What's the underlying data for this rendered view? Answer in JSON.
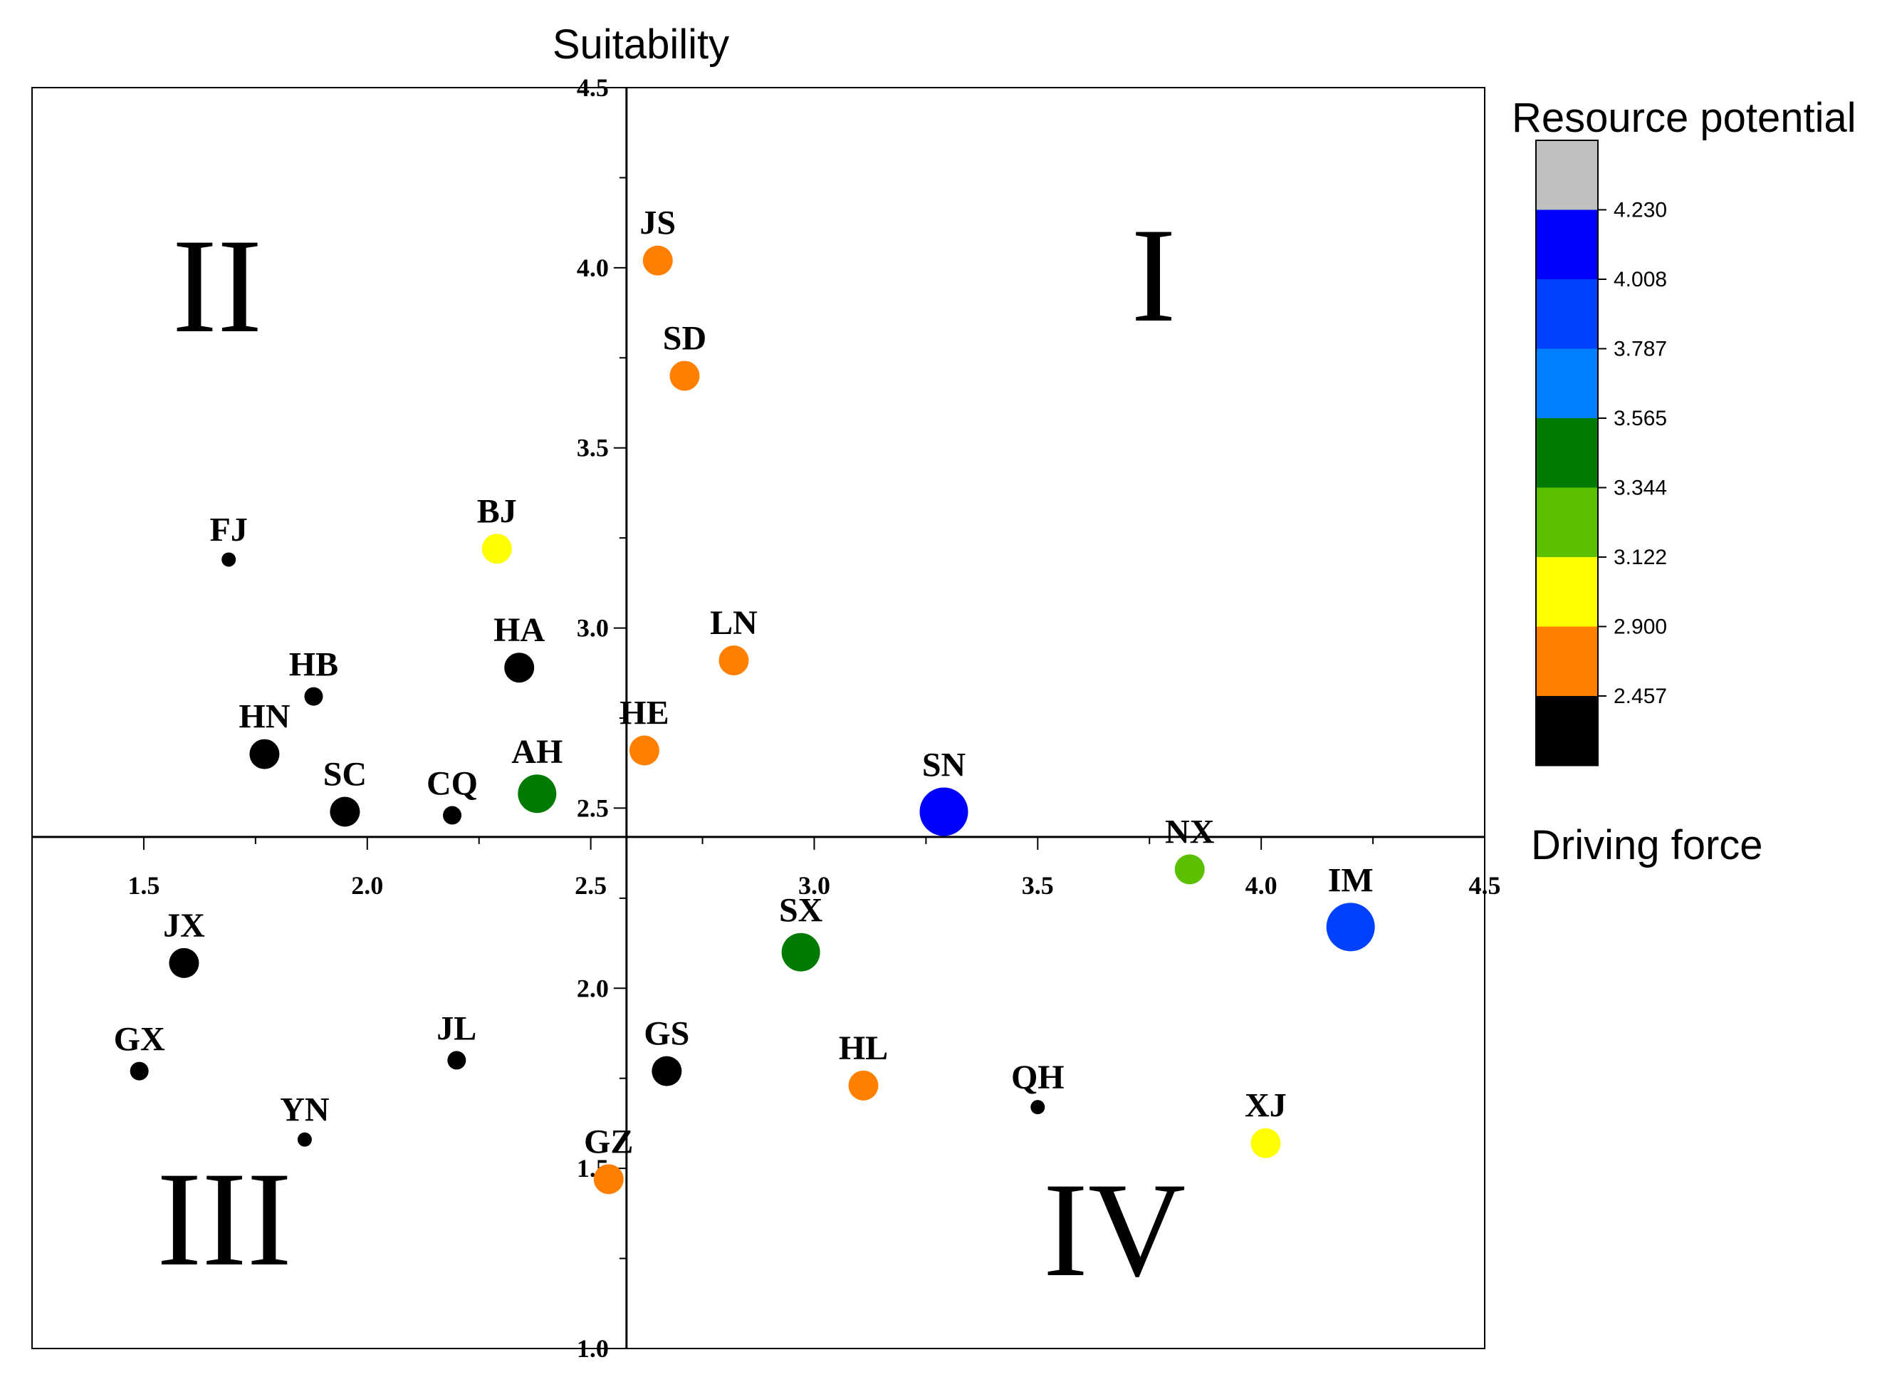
{
  "chart_data": {
    "type": "scatter",
    "title": "",
    "xlabel": "Driving force",
    "ylabel": "Suitability",
    "xlim": [
      1.25,
      4.5
    ],
    "ylim": [
      1.0,
      4.5
    ],
    "x_ticks": [
      "1.5",
      "2.0",
      "2.5",
      "3.0",
      "3.5",
      "4.0",
      "4.5"
    ],
    "y_ticks": [
      "1.0",
      "1.5",
      "2.0",
      "2.5",
      "3.0",
      "3.5",
      "4.0",
      "4.5"
    ],
    "quadrants": [
      "I",
      "II",
      "III",
      "IV"
    ],
    "legend": {
      "title": "Resource potential",
      "boundaries": [
        "2.457",
        "2.900",
        "3.122",
        "3.344",
        "3.565",
        "3.787",
        "4.008",
        "4.230"
      ],
      "colors": [
        "#000000",
        "#ff8000",
        "#ffff00",
        "#5ac000",
        "#007a00",
        "#0080ff",
        "#0040ff",
        "#0000ff",
        "#c0c0c0"
      ]
    },
    "points": [
      {
        "label": "JS",
        "x": 2.65,
        "y": 4.02,
        "color": "#ff8000",
        "size": "medium"
      },
      {
        "label": "SD",
        "x": 2.71,
        "y": 3.7,
        "color": "#ff8000",
        "size": "medium"
      },
      {
        "label": "FJ",
        "x": 1.69,
        "y": 3.19,
        "color": "#000000",
        "size": "tiny"
      },
      {
        "label": "BJ",
        "x": 2.29,
        "y": 3.22,
        "color": "#ffff00",
        "size": "medium"
      },
      {
        "label": "HA",
        "x": 2.34,
        "y": 2.89,
        "color": "#000000",
        "size": "medium"
      },
      {
        "label": "LN",
        "x": 2.82,
        "y": 2.91,
        "color": "#ff8000",
        "size": "medium"
      },
      {
        "label": "HB",
        "x": 1.88,
        "y": 2.81,
        "color": "#000000",
        "size": "small"
      },
      {
        "label": "HN",
        "x": 1.77,
        "y": 2.65,
        "color": "#000000",
        "size": "medium"
      },
      {
        "label": "HE",
        "x": 2.62,
        "y": 2.66,
        "color": "#ff8000",
        "size": "medium"
      },
      {
        "label": "SC",
        "x": 1.95,
        "y": 2.49,
        "color": "#000000",
        "size": "medium"
      },
      {
        "label": "CQ",
        "x": 2.19,
        "y": 2.48,
        "color": "#000000",
        "size": "small"
      },
      {
        "label": "AH",
        "x": 2.38,
        "y": 2.54,
        "color": "#007a00",
        "size": "large"
      },
      {
        "label": "SN",
        "x": 3.29,
        "y": 2.49,
        "color": "#0000ff",
        "size": "xlarge"
      },
      {
        "label": "NX",
        "x": 3.84,
        "y": 2.33,
        "color": "#5ac000",
        "size": "medium"
      },
      {
        "label": "IM",
        "x": 4.2,
        "y": 2.17,
        "color": "#0040ff",
        "size": "xlarge"
      },
      {
        "label": "SX",
        "x": 2.97,
        "y": 2.1,
        "color": "#007a00",
        "size": "large"
      },
      {
        "label": "JX",
        "x": 1.59,
        "y": 2.07,
        "color": "#000000",
        "size": "medium"
      },
      {
        "label": "GX",
        "x": 1.49,
        "y": 1.77,
        "color": "#000000",
        "size": "small"
      },
      {
        "label": "JL",
        "x": 2.2,
        "y": 1.8,
        "color": "#000000",
        "size": "small"
      },
      {
        "label": "GS",
        "x": 2.67,
        "y": 1.77,
        "color": "#000000",
        "size": "medium"
      },
      {
        "label": "HL",
        "x": 3.11,
        "y": 1.73,
        "color": "#ff8000",
        "size": "medium"
      },
      {
        "label": "QH",
        "x": 3.5,
        "y": 1.67,
        "color": "#000000",
        "size": "tiny"
      },
      {
        "label": "YN",
        "x": 1.86,
        "y": 1.58,
        "color": "#000000",
        "size": "tiny"
      },
      {
        "label": "XJ",
        "x": 4.01,
        "y": 1.57,
        "color": "#ffff00",
        "size": "medium"
      },
      {
        "label": "GZ",
        "x": 2.54,
        "y": 1.47,
        "color": "#ff8000",
        "size": "medium"
      }
    ]
  }
}
